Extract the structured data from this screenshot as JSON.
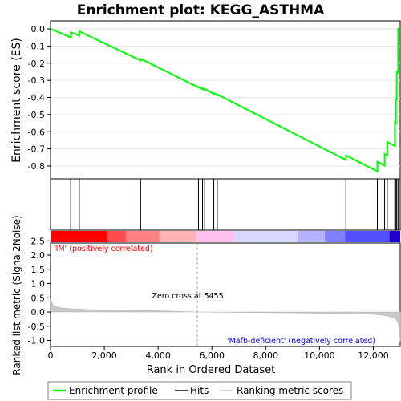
{
  "chart_data": {
    "type": "line",
    "title": "Enrichment plot: KEGG_ASTHMA",
    "es_panel": {
      "ylabel": "Enrichment score (ES)",
      "ylim": [
        -0.85,
        0.05
      ],
      "yticks": [
        0.0,
        -0.1,
        -0.2,
        -0.3,
        -0.4,
        -0.5,
        -0.6,
        -0.7,
        -0.8
      ],
      "ytick_labels": [
        "0.0",
        "-0.1",
        "-0.2",
        "-0.3",
        "-0.4",
        "-0.5",
        "-0.6",
        "-0.7",
        "-0.8"
      ],
      "series": [
        {
          "name": "Enrichment profile",
          "color": "#00ff00",
          "x": [
            0,
            750,
            751,
            1070,
            1071,
            3350,
            3351,
            5500,
            5501,
            5650,
            5651,
            5730,
            5731,
            6070,
            6071,
            6200,
            6201,
            10980,
            10981,
            12150,
            12151,
            12420,
            12421,
            12520,
            12521,
            12800,
            12801,
            12840,
            12841,
            12870,
            12871,
            12920,
            12921,
            12990
          ],
          "y": [
            0.0,
            -0.05,
            -0.02,
            -0.04,
            -0.015,
            -0.185,
            -0.175,
            -0.342,
            -0.338,
            -0.352,
            -0.348,
            -0.356,
            -0.352,
            -0.379,
            -0.375,
            -0.387,
            -0.383,
            -0.765,
            -0.738,
            -0.832,
            -0.775,
            -0.798,
            -0.73,
            -0.738,
            -0.66,
            -0.683,
            -0.545,
            -0.55,
            -0.41,
            -0.412,
            -0.25,
            -0.255,
            0.0,
            0.0
          ]
        }
      ]
    },
    "hits": {
      "name": "Hits",
      "positions": [
        750,
        1070,
        3350,
        5500,
        5650,
        5730,
        6070,
        6200,
        10980,
        12150,
        12420,
        12520,
        12800,
        12840,
        12870,
        12920
      ]
    },
    "gradient_bar": {
      "colors": [
        "#ff0000",
        "#ff4d4d",
        "#ff8080",
        "#ffb3b3",
        "#ffc0ec",
        "#d7d7ff",
        "#b3b3ff",
        "#8080ff",
        "#5050ff",
        "#2000d0"
      ],
      "breaks": [
        0,
        2100,
        2800,
        4050,
        5400,
        6800,
        9200,
        10200,
        10950,
        12600,
        13000
      ]
    },
    "metric_panel": {
      "ylabel": "Ranked list metric (Signal2Noise)",
      "ylim": [
        -1.2,
        2.5
      ],
      "yticks": [
        2.5,
        2.0,
        1.5,
        1.0,
        0.5,
        0.0,
        -0.5,
        -1.0
      ],
      "ytick_labels": [
        "2.5",
        "2.0",
        "1.5",
        "1.0",
        "0.5",
        "0.0",
        "-0.5",
        "-1.0"
      ],
      "x": [
        0,
        40,
        100,
        200,
        400,
        800,
        1500,
        2500,
        4000,
        5455,
        7000,
        9000,
        11000,
        12000,
        12500,
        12800,
        12920,
        12980,
        13000
      ],
      "y": [
        0.52,
        0.35,
        0.25,
        0.19,
        0.14,
        0.11,
        0.085,
        0.065,
        0.04,
        0.0,
        -0.015,
        -0.03,
        -0.055,
        -0.085,
        -0.13,
        -0.22,
        -0.35,
        -0.75,
        -1.05
      ],
      "fill_color": "#c8c8c8",
      "zero_cross_label": "Zero cross at 5455",
      "zero_cross": 5455,
      "pos_label": "'IM' (positively correlated)",
      "neg_label": "'Mafb-deficient' (negatively correlated)",
      "pos_color": "#ff0000",
      "neg_color": "#0000ff"
    },
    "xaxis": {
      "xlabel": "Rank in Ordered Dataset",
      "xlim": [
        0,
        13000
      ],
      "ticks": [
        0,
        2000,
        4000,
        6000,
        8000,
        10000,
        12000
      ],
      "tick_labels": [
        "0",
        "2,000",
        "4,000",
        "6,000",
        "8,000",
        "10,000",
        "12,000"
      ]
    },
    "legend": {
      "position": "bottom",
      "entries": [
        {
          "label": "Enrichment profile",
          "color": "#00ff00"
        },
        {
          "label": "Hits",
          "color": "#000000"
        },
        {
          "label": "Ranking metric scores",
          "color": "#c0c0c0"
        }
      ]
    }
  }
}
